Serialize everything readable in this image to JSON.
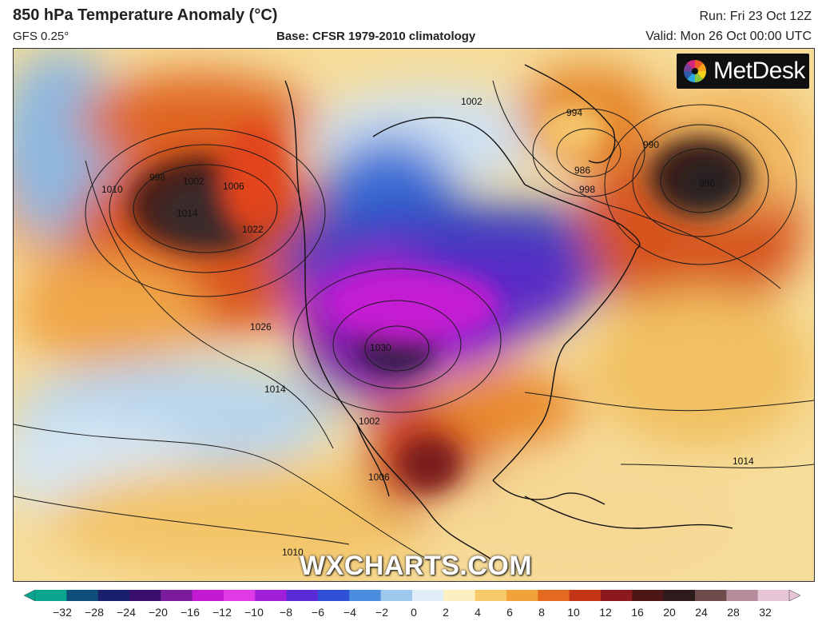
{
  "header": {
    "title": "850 hPa Temperature Anomaly (°C)",
    "model": "GFS 0.25°",
    "base": "Base: CFSR 1979-2010 climatology",
    "run": "Run: Fri 23 Oct 12Z",
    "valid": "Valid: Mon 26 Oct 00:00 UTC"
  },
  "logo": {
    "text": "MetDesk",
    "icon": "metdesk-logo-icon"
  },
  "watermark": "WXCHARTS.COM",
  "colorbar": {
    "ticks": [
      "−32",
      "−28",
      "−24",
      "−20",
      "−16",
      "−12",
      "−10",
      "−8",
      "−6",
      "−4",
      "−2",
      "0",
      "2",
      "4",
      "6",
      "8",
      "10",
      "12",
      "16",
      "20",
      "24",
      "28",
      "32"
    ],
    "colors": [
      "#0aa58c",
      "#0f4f7a",
      "#1a1f6b",
      "#3a0f6e",
      "#7a1c9c",
      "#c21ad0",
      "#e039e6",
      "#a11fd8",
      "#5a2bd6",
      "#2e51d8",
      "#4d8de0",
      "#9ec8ee",
      "#e0eef8",
      "#fbf0bf",
      "#f7c96a",
      "#f1a23a",
      "#e46a1f",
      "#c43416",
      "#8c1a1d",
      "#4e1616",
      "#2e1b1b",
      "#6e4b4b",
      "#b48c9a",
      "#e6c6d6"
    ]
  },
  "map_labels": {
    "isobars": [
      "1002",
      "1006",
      "998",
      "1014",
      "1022",
      "1010",
      "1026",
      "1030",
      "1014",
      "1002",
      "1006",
      "994",
      "986",
      "998",
      "990",
      "986",
      "1010",
      "1002",
      "1014"
    ]
  }
}
